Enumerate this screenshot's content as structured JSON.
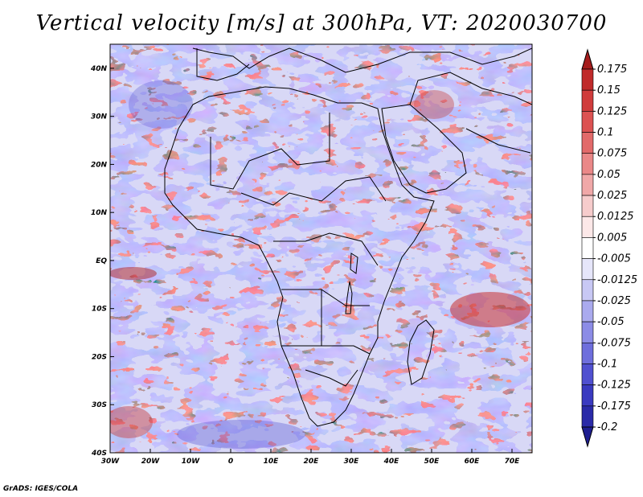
{
  "title": "Vertical velocity [m/s] at 300hPa, VT: 2020030700",
  "credit": "GrADS: IGES/COLA",
  "map": {
    "region": "Africa",
    "variable": "Vertical velocity",
    "units": "m/s",
    "level": "300hPa",
    "valid_time": "2020030700",
    "lon_range": [
      -30,
      75
    ],
    "lat_range": [
      -40,
      45
    ],
    "lon_ticks": [
      "30W",
      "20W",
      "10W",
      "0",
      "10E",
      "20E",
      "30E",
      "40E",
      "50E",
      "60E",
      "70E"
    ],
    "lat_ticks": [
      "40N",
      "30N",
      "20N",
      "10N",
      "EQ",
      "10S",
      "20S",
      "30S",
      "40S"
    ]
  },
  "colorbar": {
    "levels": [
      "0.175",
      "0.15",
      "0.125",
      "0.1",
      "0.075",
      "0.05",
      "0.025",
      "0.0125",
      "0.005",
      "-0.005",
      "-0.0125",
      "-0.025",
      "-0.05",
      "-0.075",
      "-0.1",
      "-0.125",
      "-0.175",
      "-0.2"
    ],
    "colors": [
      "#a51c1c",
      "#c02a2a",
      "#d03c3c",
      "#dc5252",
      "#e26a6a",
      "#ea8888",
      "#f0a8a8",
      "#f6cccc",
      "#fce8e8",
      "#ffffff",
      "#e6e6fa",
      "#c8c8f4",
      "#aaaaee",
      "#8c8ce6",
      "#6e6edc",
      "#5050d0",
      "#3a3ac0",
      "#2a2aa8",
      "#1e1e90"
    ]
  }
}
